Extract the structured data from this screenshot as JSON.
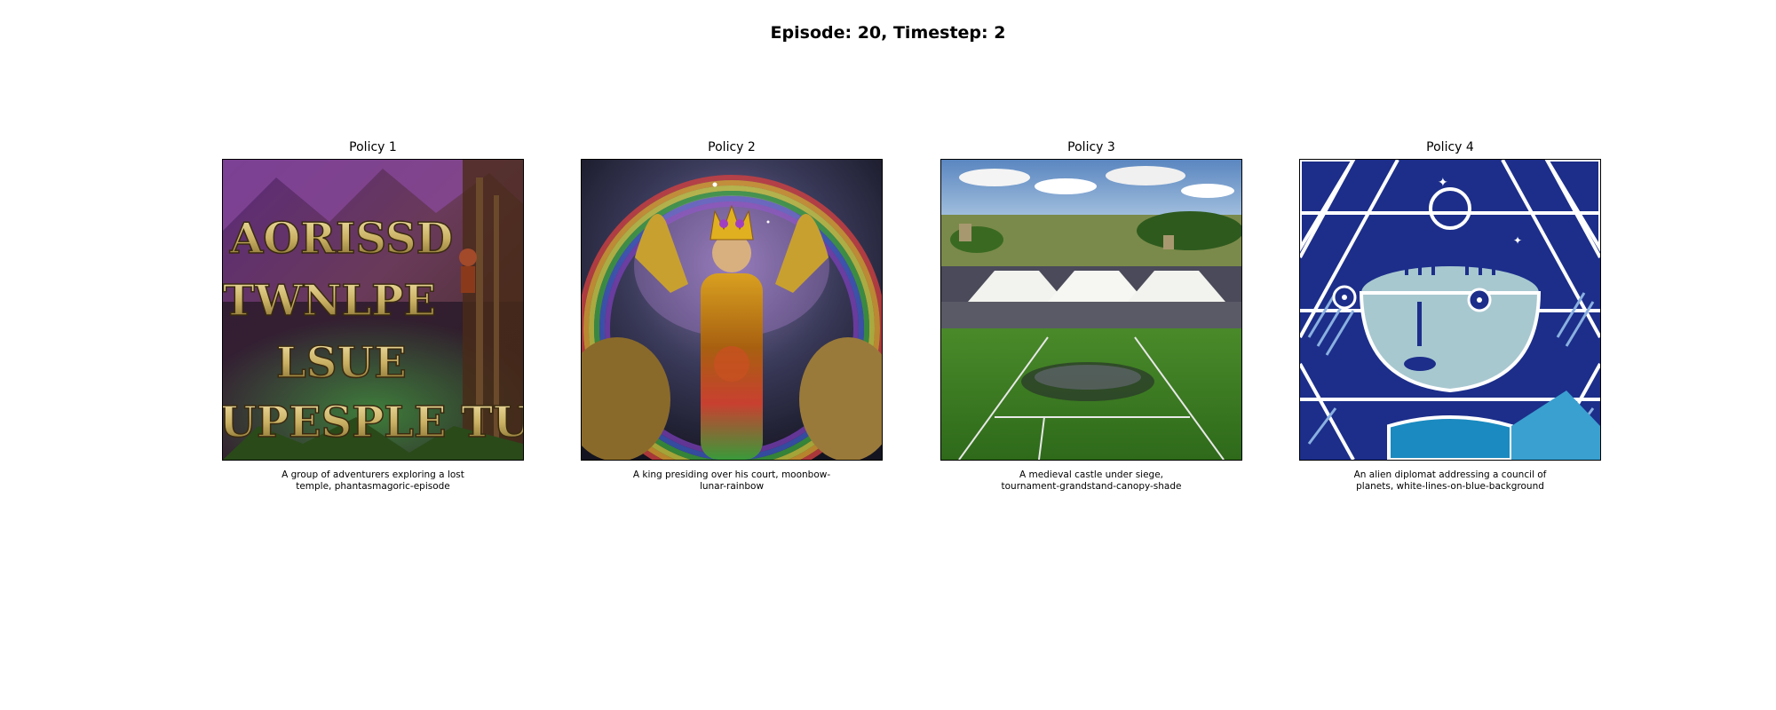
{
  "header": {
    "title": "Episode: 20, Timestep: 2"
  },
  "panels": [
    {
      "title": "Policy 1",
      "caption": "A group of adventurers exploring a lost temple, phantasmagoric-episode",
      "image_text": [
        "AORISSD",
        "TWNLPE",
        "LSUE",
        "UPESPLE TU"
      ]
    },
    {
      "title": "Policy 2",
      "caption": "A king presiding over his court, moonbow-lunar-rainbow"
    },
    {
      "title": "Policy 3",
      "caption": "A medieval castle under siege, tournament-grandstand-canopy-shade"
    },
    {
      "title": "Policy 4",
      "caption": "An alien diplomat addressing a council of planets, white-lines-on-blue-background"
    }
  ]
}
